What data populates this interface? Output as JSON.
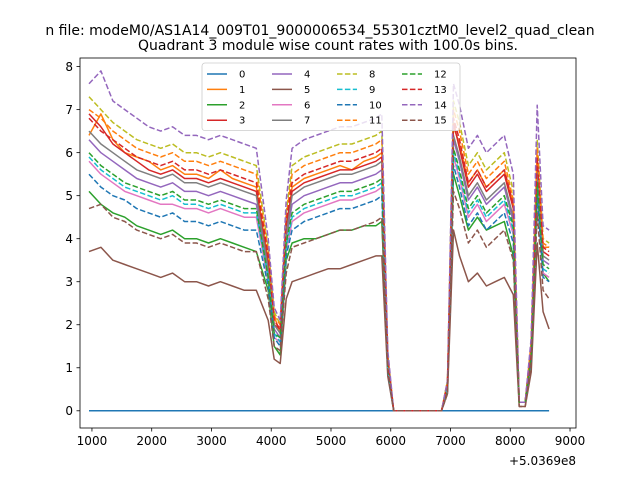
{
  "header": {
    "suptitle": "n file: modeM0/AS1A14_009T01_9000006534_55301cztM0_level2_quad_clean"
  },
  "chart_data": {
    "type": "line",
    "title": "Quadrant 3 module wise count rates with 100.0s bins.",
    "xlabel": "",
    "ylabel": "",
    "x_offset_text": "+5.0369e8",
    "xlim": [
      800,
      9100
    ],
    "ylim": [
      -0.4,
      8.2
    ],
    "xticks": [
      1000,
      2000,
      3000,
      4000,
      5000,
      6000,
      7000,
      8000,
      9000
    ],
    "yticks": [
      0,
      1,
      2,
      3,
      4,
      5,
      6,
      7,
      8
    ],
    "grid": false,
    "legend_placement": "top-center",
    "legend_columns": 4,
    "x": [
      950,
      1150,
      1350,
      1550,
      1750,
      1950,
      2150,
      2350,
      2550,
      2750,
      2950,
      3150,
      3350,
      3550,
      3750,
      3950,
      4050,
      4150,
      4250,
      4350,
      4550,
      4750,
      4950,
      5150,
      5350,
      5550,
      5750,
      5850,
      5950,
      6050,
      6250,
      6450,
      6650,
      6850,
      6950,
      7050,
      7150,
      7300,
      7450,
      7600,
      7750,
      7900,
      8050,
      8150,
      8250,
      8350,
      8450,
      8550,
      8650
    ],
    "series": [
      {
        "name": "0",
        "color": "#1f77b4",
        "dash": "solid",
        "values": [
          0,
          0,
          0,
          0,
          0,
          0,
          0,
          0,
          0,
          0,
          0,
          0,
          0,
          0,
          0,
          0,
          0,
          0,
          0,
          0,
          0,
          0,
          0,
          0,
          0,
          0,
          0,
          0,
          0,
          0,
          0,
          0,
          0,
          0,
          0,
          0,
          0,
          0,
          0,
          0,
          0,
          0,
          0,
          0,
          0,
          0,
          0,
          0,
          0
        ]
      },
      {
        "name": "1",
        "color": "#ff7f0e",
        "dash": "solid",
        "values": [
          6.4,
          6.9,
          6.3,
          6.0,
          5.9,
          5.8,
          5.6,
          5.7,
          5.5,
          5.5,
          5.4,
          5.6,
          5.4,
          5.3,
          5.2,
          3.5,
          2.2,
          1.8,
          4.2,
          5.2,
          5.4,
          5.5,
          5.6,
          5.7,
          5.6,
          5.8,
          5.9,
          6.0,
          1.2,
          0,
          0,
          0,
          0,
          0,
          0.6,
          6.6,
          6.2,
          5.3,
          5.6,
          5.2,
          5.4,
          5.6,
          4.8,
          0.2,
          0.2,
          1.5,
          5.8,
          3.8,
          3.8
        ]
      },
      {
        "name": "2",
        "color": "#2ca02c",
        "dash": "solid",
        "values": [
          5.1,
          4.8,
          4.6,
          4.5,
          4.3,
          4.2,
          4.1,
          4.2,
          4.0,
          4.0,
          3.9,
          4.0,
          3.9,
          3.8,
          3.7,
          2.8,
          1.5,
          1.3,
          3.5,
          3.9,
          4.0,
          4.0,
          4.1,
          4.2,
          4.2,
          4.3,
          4.3,
          4.4,
          1.0,
          0,
          0,
          0,
          0,
          0,
          0.5,
          5.5,
          5.0,
          4.2,
          4.5,
          4.2,
          4.3,
          4.4,
          3.6,
          0.2,
          0.2,
          1.2,
          5.4,
          3.2,
          3.0
        ]
      },
      {
        "name": "3",
        "color": "#d62728",
        "dash": "solid",
        "values": [
          6.9,
          6.6,
          6.2,
          6.0,
          5.8,
          5.6,
          5.5,
          5.6,
          5.4,
          5.4,
          5.3,
          5.4,
          5.3,
          5.2,
          5.1,
          3.4,
          2.0,
          1.9,
          4.3,
          5.1,
          5.3,
          5.4,
          5.5,
          5.6,
          5.6,
          5.7,
          5.8,
          5.9,
          1.2,
          0,
          0,
          0,
          0,
          0,
          0.6,
          6.7,
          6.1,
          5.2,
          5.5,
          5.1,
          5.3,
          5.5,
          4.7,
          0.2,
          0.2,
          1.5,
          5.7,
          3.7,
          3.6
        ]
      },
      {
        "name": "4",
        "color": "#9467bd",
        "dash": "solid",
        "values": [
          6.3,
          6.0,
          5.8,
          5.6,
          5.4,
          5.3,
          5.2,
          5.3,
          5.1,
          5.1,
          5.0,
          5.1,
          5.0,
          4.9,
          4.8,
          3.2,
          1.9,
          1.7,
          4.0,
          4.8,
          5.0,
          5.1,
          5.2,
          5.3,
          5.3,
          5.4,
          5.5,
          5.6,
          1.1,
          0,
          0,
          0,
          0,
          0,
          0.6,
          6.3,
          5.8,
          4.9,
          5.2,
          4.8,
          5.0,
          5.2,
          4.4,
          0.2,
          0.2,
          1.4,
          5.5,
          3.5,
          3.4
        ]
      },
      {
        "name": "5",
        "color": "#8c564b",
        "dash": "solid",
        "values": [
          3.7,
          3.8,
          3.5,
          3.4,
          3.3,
          3.2,
          3.1,
          3.2,
          3.0,
          3.0,
          2.9,
          3.0,
          2.9,
          2.8,
          2.8,
          2.1,
          1.2,
          1.1,
          2.6,
          3.0,
          3.1,
          3.2,
          3.3,
          3.3,
          3.4,
          3.5,
          3.6,
          3.6,
          0.8,
          0,
          0,
          0,
          0,
          0,
          0.4,
          4.2,
          3.6,
          3.0,
          3.2,
          2.9,
          3.0,
          3.1,
          2.7,
          0.1,
          0.1,
          0.9,
          3.9,
          2.3,
          1.9
        ]
      },
      {
        "name": "6",
        "color": "#e377c2",
        "dash": "solid",
        "values": [
          5.8,
          5.5,
          5.3,
          5.1,
          5.0,
          4.9,
          4.8,
          4.8,
          4.7,
          4.7,
          4.6,
          4.7,
          4.6,
          4.5,
          4.5,
          3.0,
          1.7,
          1.6,
          3.7,
          4.4,
          4.6,
          4.7,
          4.8,
          4.9,
          4.9,
          5.0,
          5.1,
          5.2,
          1.0,
          0,
          0,
          0,
          0,
          0,
          0.5,
          5.9,
          5.4,
          4.5,
          4.8,
          4.4,
          4.6,
          4.8,
          4.1,
          0.2,
          0.2,
          1.3,
          5.1,
          3.2,
          3.1
        ]
      },
      {
        "name": "7",
        "color": "#7f7f7f",
        "dash": "solid",
        "values": [
          6.5,
          6.2,
          6.0,
          5.8,
          5.6,
          5.5,
          5.4,
          5.5,
          5.3,
          5.3,
          5.2,
          5.3,
          5.2,
          5.1,
          5.0,
          3.3,
          2.0,
          1.8,
          4.1,
          5.0,
          5.2,
          5.3,
          5.4,
          5.5,
          5.5,
          5.6,
          5.7,
          5.8,
          1.1,
          0,
          0,
          0,
          0,
          0,
          0.6,
          6.4,
          5.9,
          5.0,
          5.3,
          4.9,
          5.1,
          5.3,
          4.5,
          0.2,
          0.2,
          1.4,
          5.6,
          3.6,
          3.5
        ]
      },
      {
        "name": "8",
        "color": "#bcbd22",
        "dash": "dashed",
        "values": [
          7.3,
          7.0,
          6.7,
          6.5,
          6.3,
          6.2,
          6.1,
          6.2,
          6.0,
          6.0,
          5.9,
          6.0,
          5.9,
          5.8,
          5.7,
          3.8,
          2.3,
          2.0,
          4.6,
          5.7,
          5.9,
          6.0,
          6.1,
          6.2,
          6.2,
          6.3,
          6.4,
          6.5,
          1.3,
          0,
          0,
          0,
          0,
          0,
          0.7,
          7.2,
          6.7,
          5.7,
          6.0,
          5.6,
          5.8,
          6.0,
          5.1,
          0.2,
          0.2,
          1.6,
          6.3,
          4.0,
          3.9
        ]
      },
      {
        "name": "9",
        "color": "#17becf",
        "dash": "dashed",
        "values": [
          5.9,
          5.6,
          5.4,
          5.2,
          5.1,
          5.0,
          4.9,
          5.0,
          4.8,
          4.8,
          4.7,
          4.8,
          4.7,
          4.6,
          4.6,
          3.1,
          1.8,
          1.6,
          3.8,
          4.5,
          4.7,
          4.8,
          4.9,
          5.0,
          5.0,
          5.1,
          5.2,
          5.3,
          1.0,
          0,
          0,
          0,
          0,
          0,
          0.5,
          6.0,
          5.5,
          4.6,
          4.9,
          4.5,
          4.7,
          4.9,
          4.2,
          0.2,
          0.2,
          1.3,
          5.2,
          3.3,
          3.2
        ]
      },
      {
        "name": "10",
        "color": "#1f77b4",
        "dash": "dashed",
        "values": [
          5.5,
          5.2,
          5.0,
          4.9,
          4.7,
          4.6,
          4.5,
          4.6,
          4.4,
          4.4,
          4.3,
          4.4,
          4.3,
          4.2,
          4.2,
          2.9,
          1.7,
          1.5,
          3.6,
          4.2,
          4.4,
          4.5,
          4.6,
          4.7,
          4.7,
          4.8,
          4.9,
          5.0,
          0.9,
          0,
          0,
          0,
          0,
          0,
          0.5,
          5.7,
          5.2,
          4.3,
          4.6,
          4.2,
          4.4,
          4.6,
          3.9,
          0.2,
          0.2,
          1.2,
          5.0,
          3.1,
          3.0
        ]
      },
      {
        "name": "11",
        "color": "#ff7f0e",
        "dash": "dashed",
        "values": [
          7.0,
          6.8,
          6.5,
          6.3,
          6.1,
          6.0,
          5.9,
          6.0,
          5.8,
          5.8,
          5.7,
          5.8,
          5.7,
          5.6,
          5.5,
          3.7,
          2.2,
          2.0,
          4.5,
          5.5,
          5.7,
          5.8,
          5.9,
          6.0,
          6.0,
          6.1,
          6.2,
          6.3,
          1.2,
          0,
          0,
          0,
          0,
          0,
          0.7,
          7.0,
          6.5,
          5.5,
          5.8,
          5.4,
          5.6,
          5.8,
          4.9,
          0.2,
          0.2,
          1.6,
          6.1,
          3.9,
          3.8
        ]
      },
      {
        "name": "12",
        "color": "#2ca02c",
        "dash": "dashed",
        "values": [
          6.0,
          5.7,
          5.5,
          5.3,
          5.2,
          5.1,
          5.0,
          5.1,
          4.9,
          4.9,
          4.8,
          4.9,
          4.8,
          4.7,
          4.7,
          3.1,
          1.8,
          1.7,
          3.9,
          4.6,
          4.8,
          4.9,
          5.0,
          5.1,
          5.1,
          5.2,
          5.3,
          5.4,
          1.0,
          0,
          0,
          0,
          0,
          0,
          0.5,
          6.1,
          5.6,
          4.7,
          5.0,
          4.6,
          4.8,
          5.0,
          4.3,
          0.2,
          0.2,
          1.3,
          5.3,
          3.4,
          3.3
        ]
      },
      {
        "name": "13",
        "color": "#d62728",
        "dash": "dashed",
        "values": [
          6.8,
          6.5,
          6.3,
          6.1,
          5.9,
          5.8,
          5.7,
          5.8,
          5.6,
          5.6,
          5.5,
          5.6,
          5.5,
          5.4,
          5.3,
          3.6,
          2.1,
          1.9,
          4.4,
          5.3,
          5.5,
          5.6,
          5.7,
          5.8,
          5.8,
          5.9,
          6.0,
          6.1,
          1.2,
          0,
          0,
          0,
          0,
          0,
          0.6,
          6.8,
          6.3,
          5.3,
          5.6,
          5.2,
          5.4,
          5.6,
          4.8,
          0.2,
          0.2,
          1.5,
          5.9,
          3.8,
          3.7
        ]
      },
      {
        "name": "14",
        "color": "#9467bd",
        "dash": "dashed",
        "values": [
          7.6,
          7.9,
          7.2,
          7.0,
          6.8,
          6.6,
          6.5,
          6.6,
          6.4,
          6.4,
          6.3,
          6.4,
          6.3,
          6.2,
          6.1,
          4.0,
          2.4,
          2.1,
          4.9,
          6.1,
          6.3,
          6.4,
          6.5,
          6.6,
          6.6,
          6.7,
          6.8,
          6.9,
          1.4,
          0,
          0,
          0,
          0,
          0,
          0.7,
          7.6,
          7.1,
          6.1,
          6.4,
          6.0,
          6.2,
          6.4,
          5.5,
          0.2,
          0.2,
          1.7,
          7.1,
          4.3,
          4.2
        ]
      },
      {
        "name": "15",
        "color": "#8c564b",
        "dash": "dashed",
        "values": [
          4.7,
          4.8,
          4.5,
          4.4,
          4.2,
          4.1,
          4.0,
          4.1,
          3.9,
          3.9,
          3.8,
          3.9,
          3.8,
          3.7,
          3.7,
          2.6,
          1.5,
          1.4,
          3.2,
          3.8,
          3.9,
          4.0,
          4.1,
          4.2,
          4.2,
          4.3,
          4.4,
          4.5,
          0.9,
          0,
          0,
          0,
          0,
          0,
          0.4,
          5.1,
          4.7,
          3.9,
          4.2,
          3.8,
          4.0,
          4.2,
          3.5,
          0.1,
          0.1,
          1.1,
          4.6,
          2.8,
          2.6
        ]
      }
    ]
  }
}
